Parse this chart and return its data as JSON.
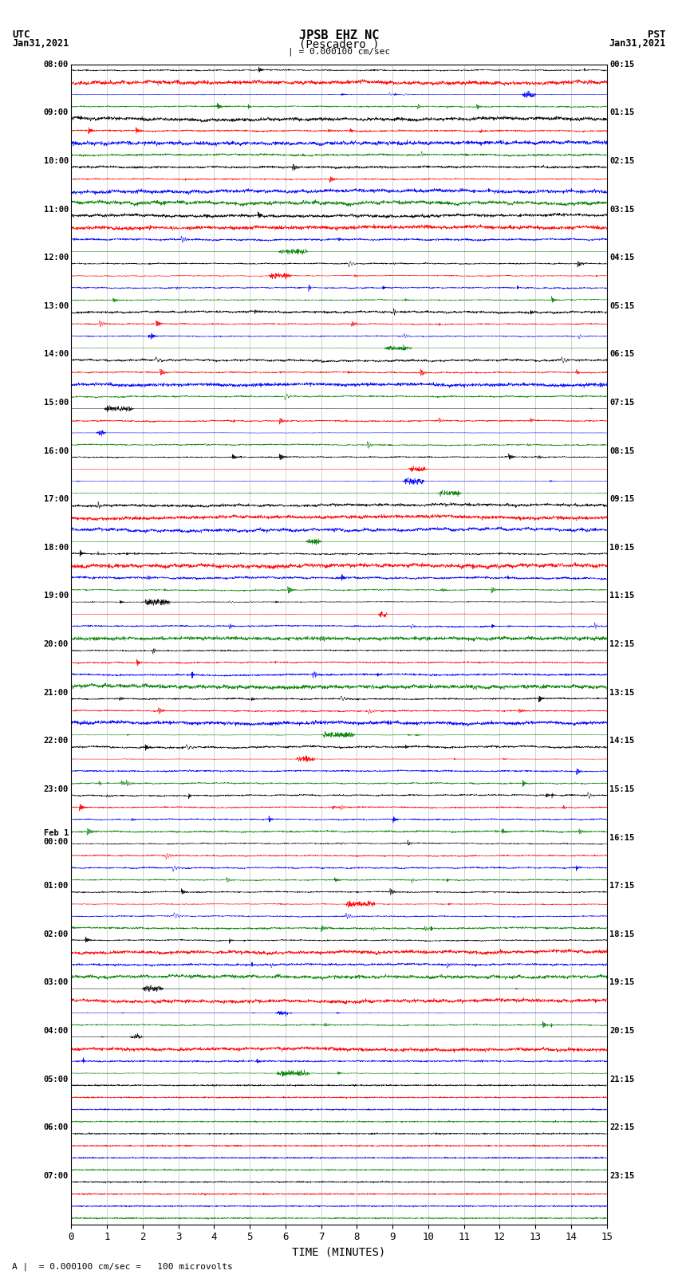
{
  "title_line1": "JPSB EHZ NC",
  "title_line2": "(Pescadero )",
  "scale_text": "| = 0.000100 cm/sec",
  "footer_text": "= 0.000100 cm/sec =   100 microvolts",
  "xlabel": "TIME (MINUTES)",
  "x_ticks": [
    0,
    1,
    2,
    3,
    4,
    5,
    6,
    7,
    8,
    9,
    10,
    11,
    12,
    13,
    14,
    15
  ],
  "xlim": [
    0,
    15
  ],
  "figsize": [
    8.5,
    16.13
  ],
  "dpi": 100,
  "background_color": "white",
  "trace_colors": [
    "black",
    "red",
    "blue",
    "green"
  ],
  "utc_labels": [
    [
      "08:00",
      0
    ],
    [
      "09:00",
      4
    ],
    [
      "10:00",
      8
    ],
    [
      "11:00",
      12
    ],
    [
      "12:00",
      16
    ],
    [
      "13:00",
      20
    ],
    [
      "14:00",
      24
    ],
    [
      "15:00",
      28
    ],
    [
      "16:00",
      32
    ],
    [
      "17:00",
      36
    ],
    [
      "18:00",
      40
    ],
    [
      "19:00",
      44
    ],
    [
      "20:00",
      48
    ],
    [
      "21:00",
      52
    ],
    [
      "22:00",
      56
    ],
    [
      "23:00",
      60
    ],
    [
      "Feb 1\n00:00",
      64
    ],
    [
      "01:00",
      68
    ],
    [
      "02:00",
      72
    ],
    [
      "03:00",
      76
    ],
    [
      "04:00",
      80
    ],
    [
      "05:00",
      84
    ],
    [
      "06:00",
      88
    ],
    [
      "07:00",
      92
    ]
  ],
  "pst_labels": [
    [
      "00:15",
      0
    ],
    [
      "01:15",
      4
    ],
    [
      "02:15",
      8
    ],
    [
      "03:15",
      12
    ],
    [
      "04:15",
      16
    ],
    [
      "05:15",
      20
    ],
    [
      "06:15",
      24
    ],
    [
      "07:15",
      28
    ],
    [
      "08:15",
      32
    ],
    [
      "09:15",
      36
    ],
    [
      "10:15",
      40
    ],
    [
      "11:15",
      44
    ],
    [
      "12:15",
      48
    ],
    [
      "13:15",
      52
    ],
    [
      "14:15",
      56
    ],
    [
      "15:15",
      60
    ],
    [
      "16:15",
      64
    ],
    [
      "17:15",
      68
    ],
    [
      "18:15",
      72
    ],
    [
      "19:15",
      76
    ],
    [
      "20:15",
      80
    ],
    [
      "21:15",
      84
    ],
    [
      "22:15",
      88
    ],
    [
      "23:15",
      92
    ]
  ],
  "n_active_rows": 84,
  "n_total_rows": 96,
  "n_points": 3000,
  "seed": 42
}
